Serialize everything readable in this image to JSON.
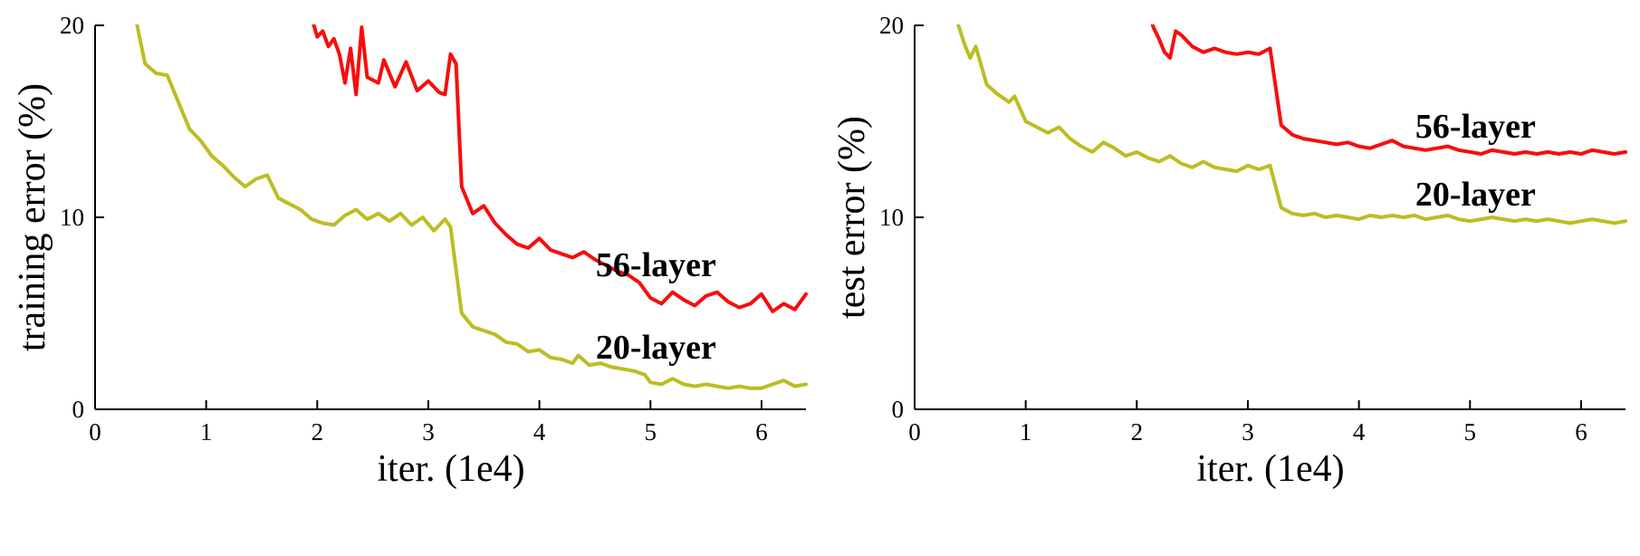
{
  "figure": {
    "background": "#ffffff"
  },
  "chart_data": [
    {
      "id": "training",
      "type": "line",
      "xlabel": "iter. (1e4)",
      "ylabel": "training error (%)",
      "xlim": [
        0,
        6.4
      ],
      "ylim": [
        0,
        20
      ],
      "xticks": [
        0,
        1,
        2,
        3,
        4,
        5,
        6
      ],
      "yticks": [
        0,
        10,
        20
      ],
      "grid": false,
      "legend_position": "inline-annotations",
      "line_width": 4,
      "series": [
        {
          "name": "20-layer",
          "color": "#bcbd22",
          "points": [
            [
              0.35,
              20.8
            ],
            [
              0.45,
              18.0
            ],
            [
              0.55,
              17.5
            ],
            [
              0.65,
              17.4
            ],
            [
              0.75,
              16.0
            ],
            [
              0.85,
              14.6
            ],
            [
              0.95,
              14.0
            ],
            [
              1.05,
              13.2
            ],
            [
              1.15,
              12.7
            ],
            [
              1.25,
              12.1
            ],
            [
              1.35,
              11.6
            ],
            [
              1.45,
              12.0
            ],
            [
              1.55,
              12.2
            ],
            [
              1.65,
              11.0
            ],
            [
              1.75,
              10.7
            ],
            [
              1.85,
              10.4
            ],
            [
              1.95,
              9.9
            ],
            [
              2.05,
              9.7
            ],
            [
              2.15,
              9.6
            ],
            [
              2.25,
              10.1
            ],
            [
              2.35,
              10.4
            ],
            [
              2.45,
              9.9
            ],
            [
              2.55,
              10.2
            ],
            [
              2.65,
              9.8
            ],
            [
              2.75,
              10.2
            ],
            [
              2.85,
              9.6
            ],
            [
              2.95,
              10.0
            ],
            [
              3.05,
              9.3
            ],
            [
              3.15,
              9.9
            ],
            [
              3.2,
              9.5
            ],
            [
              3.3,
              5.0
            ],
            [
              3.4,
              4.3
            ],
            [
              3.5,
              4.1
            ],
            [
              3.6,
              3.9
            ],
            [
              3.7,
              3.5
            ],
            [
              3.8,
              3.4
            ],
            [
              3.9,
              3.0
            ],
            [
              4.0,
              3.1
            ],
            [
              4.1,
              2.7
            ],
            [
              4.2,
              2.6
            ],
            [
              4.3,
              2.4
            ],
            [
              4.35,
              2.8
            ],
            [
              4.45,
              2.3
            ],
            [
              4.55,
              2.4
            ],
            [
              4.65,
              2.2
            ],
            [
              4.75,
              2.1
            ],
            [
              4.85,
              2.0
            ],
            [
              4.95,
              1.8
            ],
            [
              5.0,
              1.4
            ],
            [
              5.1,
              1.3
            ],
            [
              5.2,
              1.6
            ],
            [
              5.3,
              1.3
            ],
            [
              5.4,
              1.2
            ],
            [
              5.5,
              1.3
            ],
            [
              5.6,
              1.2
            ],
            [
              5.7,
              1.1
            ],
            [
              5.8,
              1.2
            ],
            [
              5.9,
              1.1
            ],
            [
              6.0,
              1.1
            ],
            [
              6.1,
              1.3
            ],
            [
              6.2,
              1.5
            ],
            [
              6.3,
              1.2
            ],
            [
              6.4,
              1.3
            ]
          ]
        },
        {
          "name": "56-layer",
          "color": "#f70d0d",
          "points": [
            [
              1.93,
              20.8
            ],
            [
              2.0,
              19.4
            ],
            [
              2.05,
              19.7
            ],
            [
              2.1,
              18.9
            ],
            [
              2.15,
              19.3
            ],
            [
              2.2,
              18.5
            ],
            [
              2.25,
              17.0
            ],
            [
              2.3,
              18.8
            ],
            [
              2.35,
              16.4
            ],
            [
              2.4,
              19.9
            ],
            [
              2.45,
              17.3
            ],
            [
              2.55,
              17.0
            ],
            [
              2.6,
              18.2
            ],
            [
              2.7,
              16.8
            ],
            [
              2.8,
              18.1
            ],
            [
              2.9,
              16.6
            ],
            [
              3.0,
              17.1
            ],
            [
              3.1,
              16.5
            ],
            [
              3.15,
              16.4
            ],
            [
              3.2,
              18.5
            ],
            [
              3.25,
              18.0
            ],
            [
              3.3,
              11.6
            ],
            [
              3.4,
              10.2
            ],
            [
              3.5,
              10.6
            ],
            [
              3.6,
              9.7
            ],
            [
              3.7,
              9.1
            ],
            [
              3.8,
              8.6
            ],
            [
              3.9,
              8.4
            ],
            [
              4.0,
              8.9
            ],
            [
              4.1,
              8.3
            ],
            [
              4.2,
              8.1
            ],
            [
              4.3,
              7.9
            ],
            [
              4.4,
              8.2
            ],
            [
              4.5,
              7.8
            ],
            [
              4.6,
              7.5
            ],
            [
              4.7,
              7.2
            ],
            [
              4.8,
              7.0
            ],
            [
              4.9,
              6.6
            ],
            [
              5.0,
              5.8
            ],
            [
              5.1,
              5.5
            ],
            [
              5.2,
              6.1
            ],
            [
              5.3,
              5.7
            ],
            [
              5.4,
              5.4
            ],
            [
              5.5,
              5.9
            ],
            [
              5.6,
              6.1
            ],
            [
              5.7,
              5.6
            ],
            [
              5.8,
              5.3
            ],
            [
              5.9,
              5.5
            ],
            [
              6.0,
              6.0
            ],
            [
              6.1,
              5.1
            ],
            [
              6.2,
              5.5
            ],
            [
              6.3,
              5.2
            ],
            [
              6.4,
              6.0
            ]
          ]
        }
      ],
      "annotations": [
        {
          "text": "56-layer",
          "x": 5.05,
          "y": 7.5
        },
        {
          "text": "20-layer",
          "x": 5.05,
          "y": 3.2
        }
      ]
    },
    {
      "id": "test",
      "type": "line",
      "xlabel": "iter. (1e4)",
      "ylabel": "test error (%)",
      "xlim": [
        0,
        6.4
      ],
      "ylim": [
        0,
        20
      ],
      "xticks": [
        0,
        1,
        2,
        3,
        4,
        5,
        6
      ],
      "yticks": [
        0,
        10,
        20
      ],
      "grid": false,
      "legend_position": "inline-annotations",
      "line_width": 4,
      "series": [
        {
          "name": "20-layer",
          "color": "#bcbd22",
          "points": [
            [
              0.35,
              20.8
            ],
            [
              0.45,
              19.0
            ],
            [
              0.5,
              18.3
            ],
            [
              0.55,
              18.9
            ],
            [
              0.65,
              16.9
            ],
            [
              0.75,
              16.4
            ],
            [
              0.85,
              16.0
            ],
            [
              0.9,
              16.3
            ],
            [
              1.0,
              15.0
            ],
            [
              1.1,
              14.7
            ],
            [
              1.2,
              14.4
            ],
            [
              1.3,
              14.7
            ],
            [
              1.4,
              14.1
            ],
            [
              1.5,
              13.7
            ],
            [
              1.6,
              13.4
            ],
            [
              1.7,
              13.9
            ],
            [
              1.8,
              13.6
            ],
            [
              1.9,
              13.2
            ],
            [
              2.0,
              13.4
            ],
            [
              2.1,
              13.1
            ],
            [
              2.2,
              12.9
            ],
            [
              2.3,
              13.2
            ],
            [
              2.4,
              12.8
            ],
            [
              2.5,
              12.6
            ],
            [
              2.6,
              12.9
            ],
            [
              2.7,
              12.6
            ],
            [
              2.8,
              12.5
            ],
            [
              2.9,
              12.4
            ],
            [
              3.0,
              12.7
            ],
            [
              3.1,
              12.5
            ],
            [
              3.2,
              12.7
            ],
            [
              3.3,
              10.5
            ],
            [
              3.4,
              10.2
            ],
            [
              3.5,
              10.1
            ],
            [
              3.6,
              10.2
            ],
            [
              3.7,
              10.0
            ],
            [
              3.8,
              10.1
            ],
            [
              3.9,
              10.0
            ],
            [
              4.0,
              9.9
            ],
            [
              4.1,
              10.1
            ],
            [
              4.2,
              10.0
            ],
            [
              4.3,
              10.1
            ],
            [
              4.4,
              10.0
            ],
            [
              4.5,
              10.1
            ],
            [
              4.6,
              9.9
            ],
            [
              4.7,
              10.0
            ],
            [
              4.8,
              10.1
            ],
            [
              4.9,
              9.9
            ],
            [
              5.0,
              9.8
            ],
            [
              5.1,
              9.9
            ],
            [
              5.2,
              10.0
            ],
            [
              5.3,
              9.9
            ],
            [
              5.4,
              9.8
            ],
            [
              5.5,
              9.9
            ],
            [
              5.6,
              9.8
            ],
            [
              5.7,
              9.9
            ],
            [
              5.8,
              9.8
            ],
            [
              5.9,
              9.7
            ],
            [
              6.0,
              9.8
            ],
            [
              6.1,
              9.9
            ],
            [
              6.2,
              9.8
            ],
            [
              6.3,
              9.7
            ],
            [
              6.4,
              9.8
            ]
          ]
        },
        {
          "name": "56-layer",
          "color": "#f70d0d",
          "points": [
            [
              2.1,
              20.8
            ],
            [
              2.15,
              19.9
            ],
            [
              2.2,
              19.3
            ],
            [
              2.25,
              18.6
            ],
            [
              2.3,
              18.3
            ],
            [
              2.35,
              19.7
            ],
            [
              2.4,
              19.5
            ],
            [
              2.5,
              18.9
            ],
            [
              2.6,
              18.6
            ],
            [
              2.7,
              18.8
            ],
            [
              2.8,
              18.6
            ],
            [
              2.9,
              18.5
            ],
            [
              3.0,
              18.6
            ],
            [
              3.1,
              18.5
            ],
            [
              3.2,
              18.8
            ],
            [
              3.3,
              14.8
            ],
            [
              3.4,
              14.3
            ],
            [
              3.5,
              14.1
            ],
            [
              3.6,
              14.0
            ],
            [
              3.7,
              13.9
            ],
            [
              3.8,
              13.8
            ],
            [
              3.9,
              13.9
            ],
            [
              4.0,
              13.7
            ],
            [
              4.1,
              13.6
            ],
            [
              4.2,
              13.8
            ],
            [
              4.3,
              14.0
            ],
            [
              4.4,
              13.7
            ],
            [
              4.5,
              13.6
            ],
            [
              4.6,
              13.5
            ],
            [
              4.7,
              13.6
            ],
            [
              4.8,
              13.7
            ],
            [
              4.9,
              13.5
            ],
            [
              5.0,
              13.4
            ],
            [
              5.1,
              13.3
            ],
            [
              5.2,
              13.5
            ],
            [
              5.3,
              13.4
            ],
            [
              5.4,
              13.3
            ],
            [
              5.5,
              13.4
            ],
            [
              5.6,
              13.3
            ],
            [
              5.7,
              13.4
            ],
            [
              5.8,
              13.3
            ],
            [
              5.9,
              13.4
            ],
            [
              6.0,
              13.3
            ],
            [
              6.1,
              13.5
            ],
            [
              6.2,
              13.4
            ],
            [
              6.3,
              13.3
            ],
            [
              6.4,
              13.4
            ]
          ]
        }
      ],
      "annotations": [
        {
          "text": "56-layer",
          "x": 5.05,
          "y": 14.7
        },
        {
          "text": "20-layer",
          "x": 5.05,
          "y": 11.2
        }
      ]
    }
  ]
}
